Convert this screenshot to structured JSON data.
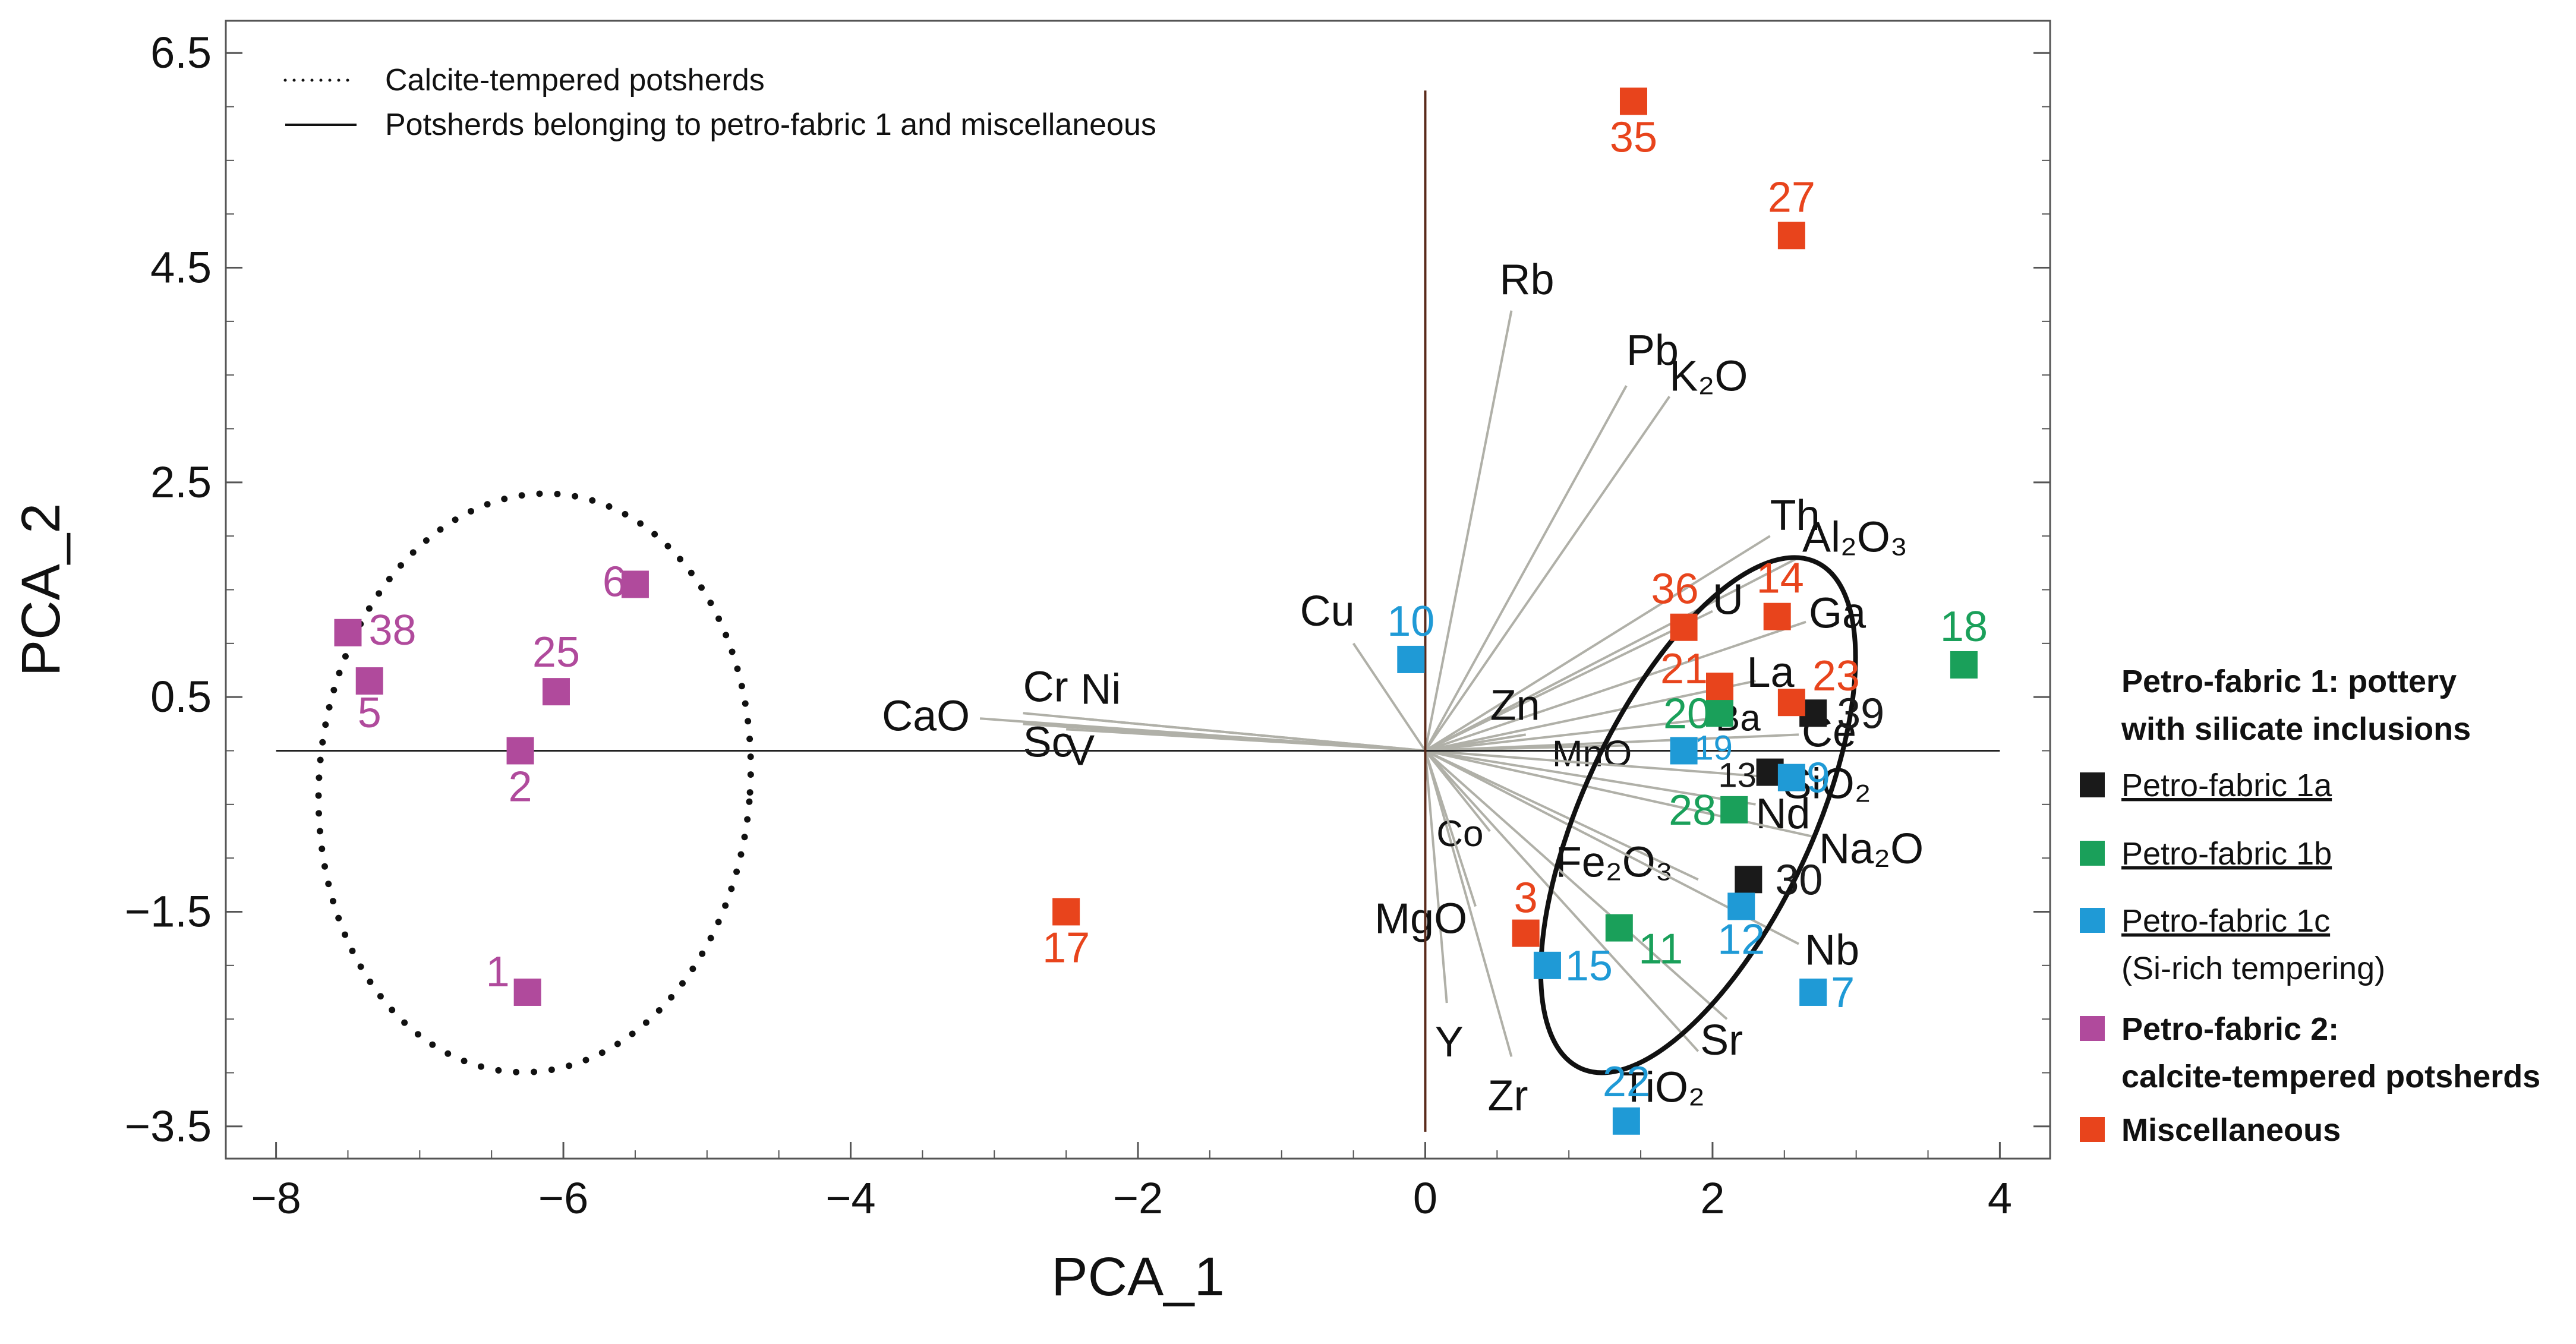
{
  "chart_data": {
    "type": "scatter",
    "title": "",
    "xlabel": "PCA_1",
    "ylabel": "PCA_2",
    "xlim": [
      -8.35,
      4.35
    ],
    "ylim": [
      -3.8,
      6.8
    ],
    "x_ticks": [
      -8,
      -6,
      -4,
      -2,
      0,
      2,
      4
    ],
    "x_tick_labels": [
      "−8",
      "−6",
      "−4",
      "−2",
      "0",
      "2",
      "4"
    ],
    "y_ticks": [
      -3.5,
      -1.5,
      0.5,
      2.5,
      4.5,
      6.5
    ],
    "y_tick_labels": [
      "−3.5",
      "−1.5",
      "0.5",
      "2.5",
      "4.5",
      "6.5"
    ],
    "grid": false,
    "colors": {
      "1a": "#1a1a1a",
      "1b": "#1aa05a",
      "1c": "#1f9ad6",
      "2": "#b04a9c",
      "misc": "#e8441c",
      "loading": "#b0b0a8",
      "axis": "#5a2a1a"
    },
    "series": [
      {
        "name": "Petro-fabric 1a",
        "key": "1a",
        "points": [
          {
            "label": "39",
            "x": 2.7,
            "y": 0.35
          },
          {
            "label": "13",
            "x": 2.4,
            "y": -0.2
          },
          {
            "label": "30",
            "x": 2.25,
            "y": -1.2
          }
        ]
      },
      {
        "name": "Petro-fabric 1b",
        "key": "1b",
        "points": [
          {
            "label": "18",
            "x": 3.75,
            "y": 0.8
          },
          {
            "label": "20",
            "x": 2.05,
            "y": 0.35
          },
          {
            "label": "28",
            "x": 2.15,
            "y": -0.55
          },
          {
            "label": "11",
            "x": 1.35,
            "y": -1.65
          }
        ]
      },
      {
        "name": "Petro-fabric 1c (Si-rich tempering)",
        "key": "1c",
        "points": [
          {
            "label": "10",
            "x": -0.1,
            "y": 0.85
          },
          {
            "label": "19",
            "x": 1.8,
            "y": 0.0
          },
          {
            "label": "9",
            "x": 2.55,
            "y": -0.25
          },
          {
            "label": "12",
            "x": 2.2,
            "y": -1.45
          },
          {
            "label": "15",
            "x": 0.85,
            "y": -2.0
          },
          {
            "label": "7",
            "x": 2.7,
            "y": -2.25
          },
          {
            "label": "22",
            "x": 1.4,
            "y": -3.45
          }
        ]
      },
      {
        "name": "Petro-fabric 2: calcite-tempered potsherds",
        "key": "2",
        "points": [
          {
            "label": "38",
            "x": -7.5,
            "y": 1.1
          },
          {
            "label": "5",
            "x": -7.35,
            "y": 0.65
          },
          {
            "label": "6",
            "x": -5.5,
            "y": 1.55
          },
          {
            "label": "25",
            "x": -6.05,
            "y": 0.55
          },
          {
            "label": "2",
            "x": -6.3,
            "y": 0.0
          },
          {
            "label": "1",
            "x": -6.25,
            "y": -2.25
          }
        ]
      },
      {
        "name": "Miscellaneous",
        "key": "misc",
        "points": [
          {
            "label": "35",
            "x": 1.45,
            "y": 6.05
          },
          {
            "label": "27",
            "x": 2.55,
            "y": 4.8
          },
          {
            "label": "36",
            "x": 1.8,
            "y": 1.15
          },
          {
            "label": "14",
            "x": 2.45,
            "y": 1.25
          },
          {
            "label": "21",
            "x": 2.05,
            "y": 0.6
          },
          {
            "label": "23",
            "x": 2.55,
            "y": 0.45
          },
          {
            "label": "3",
            "x": 0.7,
            "y": -1.7
          },
          {
            "label": "17",
            "x": -2.5,
            "y": -1.5
          }
        ]
      }
    ],
    "loadings": [
      {
        "label": "Rb",
        "x": 0.6,
        "y": 4.1
      },
      {
        "label": "Pb",
        "x": 1.4,
        "y": 3.4
      },
      {
        "label": "K₂O",
        "x": 1.7,
        "y": 3.3
      },
      {
        "label": "Th",
        "x": 2.4,
        "y": 2.0
      },
      {
        "label": "Al₂O₃",
        "x": 2.6,
        "y": 1.8
      },
      {
        "label": "U",
        "x": 2.0,
        "y": 1.3
      },
      {
        "label": "Ga",
        "x": 2.65,
        "y": 1.2
      },
      {
        "label": "La",
        "x": 2.3,
        "y": 0.65
      },
      {
        "label": "Ba",
        "x": 2.0,
        "y": 0.3
      },
      {
        "label": "Ce",
        "x": 2.6,
        "y": 0.15
      },
      {
        "label": "MnO",
        "x": 1.4,
        "y": 0.05
      },
      {
        "label": "SiO₂",
        "x": 2.45,
        "y": -0.25
      },
      {
        "label": "Nd",
        "x": 2.3,
        "y": -0.5
      },
      {
        "label": "Na₂O",
        "x": 2.7,
        "y": -0.8
      },
      {
        "label": "Fe₂O₃",
        "x": 1.9,
        "y": -1.2
      },
      {
        "label": "Nb",
        "x": 2.6,
        "y": -1.8
      },
      {
        "label": "Sr",
        "x": 2.1,
        "y": -2.5
      },
      {
        "label": "TiO₂",
        "x": 1.9,
        "y": -2.8
      },
      {
        "label": "Zr",
        "x": 0.6,
        "y": -2.85
      },
      {
        "label": "Y",
        "x": 0.15,
        "y": -2.35
      },
      {
        "label": "Co",
        "x": 0.45,
        "y": -0.75
      },
      {
        "label": "MgO",
        "x": 0.35,
        "y": -1.45
      },
      {
        "label": "Zn",
        "x": 0.7,
        "y": 0.15
      },
      {
        "label": "Cu",
        "x": -0.5,
        "y": 1.0
      },
      {
        "label": "Cr",
        "x": -2.8,
        "y": 0.35
      },
      {
        "label": "Ni",
        "x": -2.4,
        "y": 0.3
      },
      {
        "label": "CaO",
        "x": -3.1,
        "y": 0.3
      },
      {
        "label": "Sc",
        "x": -2.8,
        "y": 0.25
      },
      {
        "label": "V",
        "x": -2.5,
        "y": 0.2
      }
    ],
    "ellipses": [
      {
        "name": "Calcite-tempered potsherds",
        "style": "dotted",
        "cx": -6.2,
        "cy": -0.3,
        "rx": 1.5,
        "ry": 2.7,
        "rotation_deg": 5
      },
      {
        "name": "Potsherds belonging to petro-fabric 1 and miscellaneous",
        "style": "solid",
        "cx": 1.9,
        "cy": -0.6,
        "rx": 0.8,
        "ry": 2.6,
        "rotation_deg": 25
      }
    ],
    "legend": {
      "top_left": [
        {
          "label": "Calcite-tempered potsherds",
          "style": "dotted"
        },
        {
          "label": "Potsherds belonging to petro-fabric 1 and miscellaneous",
          "style": "solid"
        }
      ],
      "right_header": [
        "Petro-fabric 1: pottery",
        "with silicate inclusions"
      ],
      "right_items": [
        {
          "label": "Petro-fabric 1a",
          "key": "1a",
          "underline": true,
          "bold": false
        },
        {
          "label": "Petro-fabric 1b",
          "key": "1b",
          "underline": true,
          "bold": false
        },
        {
          "label": "Petro-fabric 1c",
          "sub": "(Si-rich tempering)",
          "key": "1c",
          "underline": true,
          "bold": false
        },
        {
          "label": "Petro-fabric 2:",
          "sub": "calcite-tempered potsherds",
          "key": "2",
          "underline": false,
          "bold": true
        },
        {
          "label": "Miscellaneous",
          "key": "misc",
          "underline": false,
          "bold": true
        }
      ]
    }
  }
}
